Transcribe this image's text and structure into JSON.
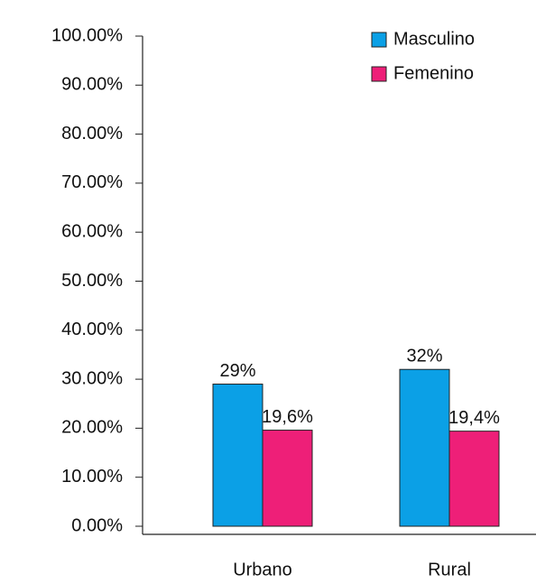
{
  "chart_data": {
    "type": "bar",
    "categories": [
      "Urbano",
      "Rural"
    ],
    "series": [
      {
        "name": "Masculino",
        "color": "#0ba0e6",
        "values": [
          29,
          32
        ],
        "value_labels": [
          "29%",
          "32%"
        ]
      },
      {
        "name": "Femenino",
        "color": "#ee1f78",
        "values": [
          19.6,
          19.4
        ],
        "value_labels": [
          "19,6%",
          "19,4%"
        ]
      }
    ],
    "ylim": [
      0,
      100
    ],
    "yticks": [
      {
        "value": 0,
        "label": "0.00%"
      },
      {
        "value": 10,
        "label": "10.00%"
      },
      {
        "value": 20,
        "label": "20.00%"
      },
      {
        "value": 30,
        "label": "30.00%"
      },
      {
        "value": 40,
        "label": "40.00%"
      },
      {
        "value": 50,
        "label": "50.00%"
      },
      {
        "value": 60,
        "label": "60.00%"
      },
      {
        "value": 70,
        "label": "70.00%"
      },
      {
        "value": 80,
        "label": "80.00%"
      },
      {
        "value": 90,
        "label": "90.00%"
      },
      {
        "value": 100,
        "label": "100.00%"
      }
    ],
    "legend": "top-right"
  }
}
